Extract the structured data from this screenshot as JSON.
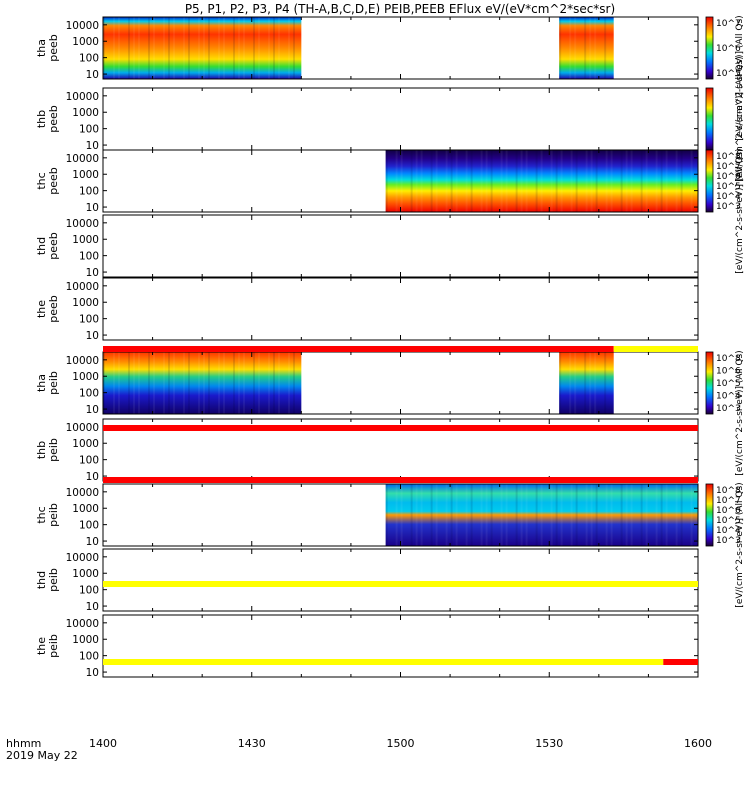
{
  "title": "P5, P1, P2, P3, P4 (TH-A,B,C,D,E) PEIB,PEEB EFlux eV/(eV*cm^2*sec*sr)",
  "time_axis": {
    "label_top": "hhmm",
    "label_bottom": "2019 May 22",
    "ticks": [
      "1400",
      "1430",
      "1500",
      "1530",
      "1600"
    ],
    "start_minutes": 0,
    "end_minutes": 120
  },
  "y_ticks": [
    "10",
    "100",
    "1000",
    "10000"
  ],
  "colorbars": [
    {
      "title": "[eV/(cm^2-s-sr-eV)] (All Qs)",
      "ticks": [
        "10^5",
        "10^6",
        "10^7"
      ]
    },
    {
      "title": "[eV/(cm^2-s-sr-eV)] (All Qs)",
      "ticks": []
    },
    {
      "title": "[eV/(cm^2-s-sr-eV)] (All Qs)",
      "ticks": [
        "10^3",
        "10^4",
        "10^5",
        "10^6",
        "10^7",
        "10^8"
      ]
    },
    {
      "title": "[eV/(cm^2-s-sr-eV)] (All Qs)",
      "ticks": [
        "10^3",
        "10^4",
        "10^5",
        "10^6",
        "10^8"
      ]
    },
    {
      "title": "[eV/(cm^2-s-sr-eV)] (All Qs)",
      "ticks": [
        "10^3",
        "10^4",
        "10^5",
        "10^6",
        "10^7",
        "10^8"
      ]
    }
  ],
  "chart_data": {
    "type": "heatmap",
    "x_unit": "minutes after 1400 UT",
    "y_range_eV": [
      5,
      30000
    ],
    "y_scale": "log",
    "panels": [
      {
        "name": "tha peeb",
        "data_intervals": [
          [
            0,
            40
          ],
          [
            92,
            103
          ]
        ]
      },
      {
        "name": "thb peeb",
        "data_intervals": []
      },
      {
        "name": "thc peeb",
        "data_intervals": [
          [
            57,
            120
          ]
        ]
      },
      {
        "name": "thd peeb",
        "data_intervals": []
      },
      {
        "name": "the peeb",
        "data_intervals": []
      },
      {
        "name": "tha peib",
        "data_intervals": [
          [
            0,
            40
          ],
          [
            92,
            103
          ]
        ]
      },
      {
        "name": "thb peib",
        "data_intervals": []
      },
      {
        "name": "thc peib",
        "data_intervals": [
          [
            57,
            120
          ]
        ]
      },
      {
        "name": "thd peib",
        "data_intervals": []
      },
      {
        "name": "the peib",
        "data_intervals": []
      }
    ],
    "mode_bars": [
      {
        "segments": [
          {
            "from": 0,
            "to": 103,
            "color": "#ff0000"
          },
          {
            "from": 103,
            "to": 120,
            "color": "#ffff00"
          }
        ]
      },
      {
        "segments": [
          {
            "from": 0,
            "to": 120,
            "color": "#ff0000"
          }
        ]
      },
      {
        "segments": [
          {
            "from": 0,
            "to": 120,
            "color": "#ff0000"
          }
        ]
      },
      {
        "segments": [
          {
            "from": 0,
            "to": 120,
            "color": "#ffff00"
          }
        ]
      },
      {
        "segments": [
          {
            "from": 0,
            "to": 113,
            "color": "#ffff00"
          },
          {
            "from": 113,
            "to": 120,
            "color": "#ff0000"
          }
        ]
      }
    ]
  }
}
